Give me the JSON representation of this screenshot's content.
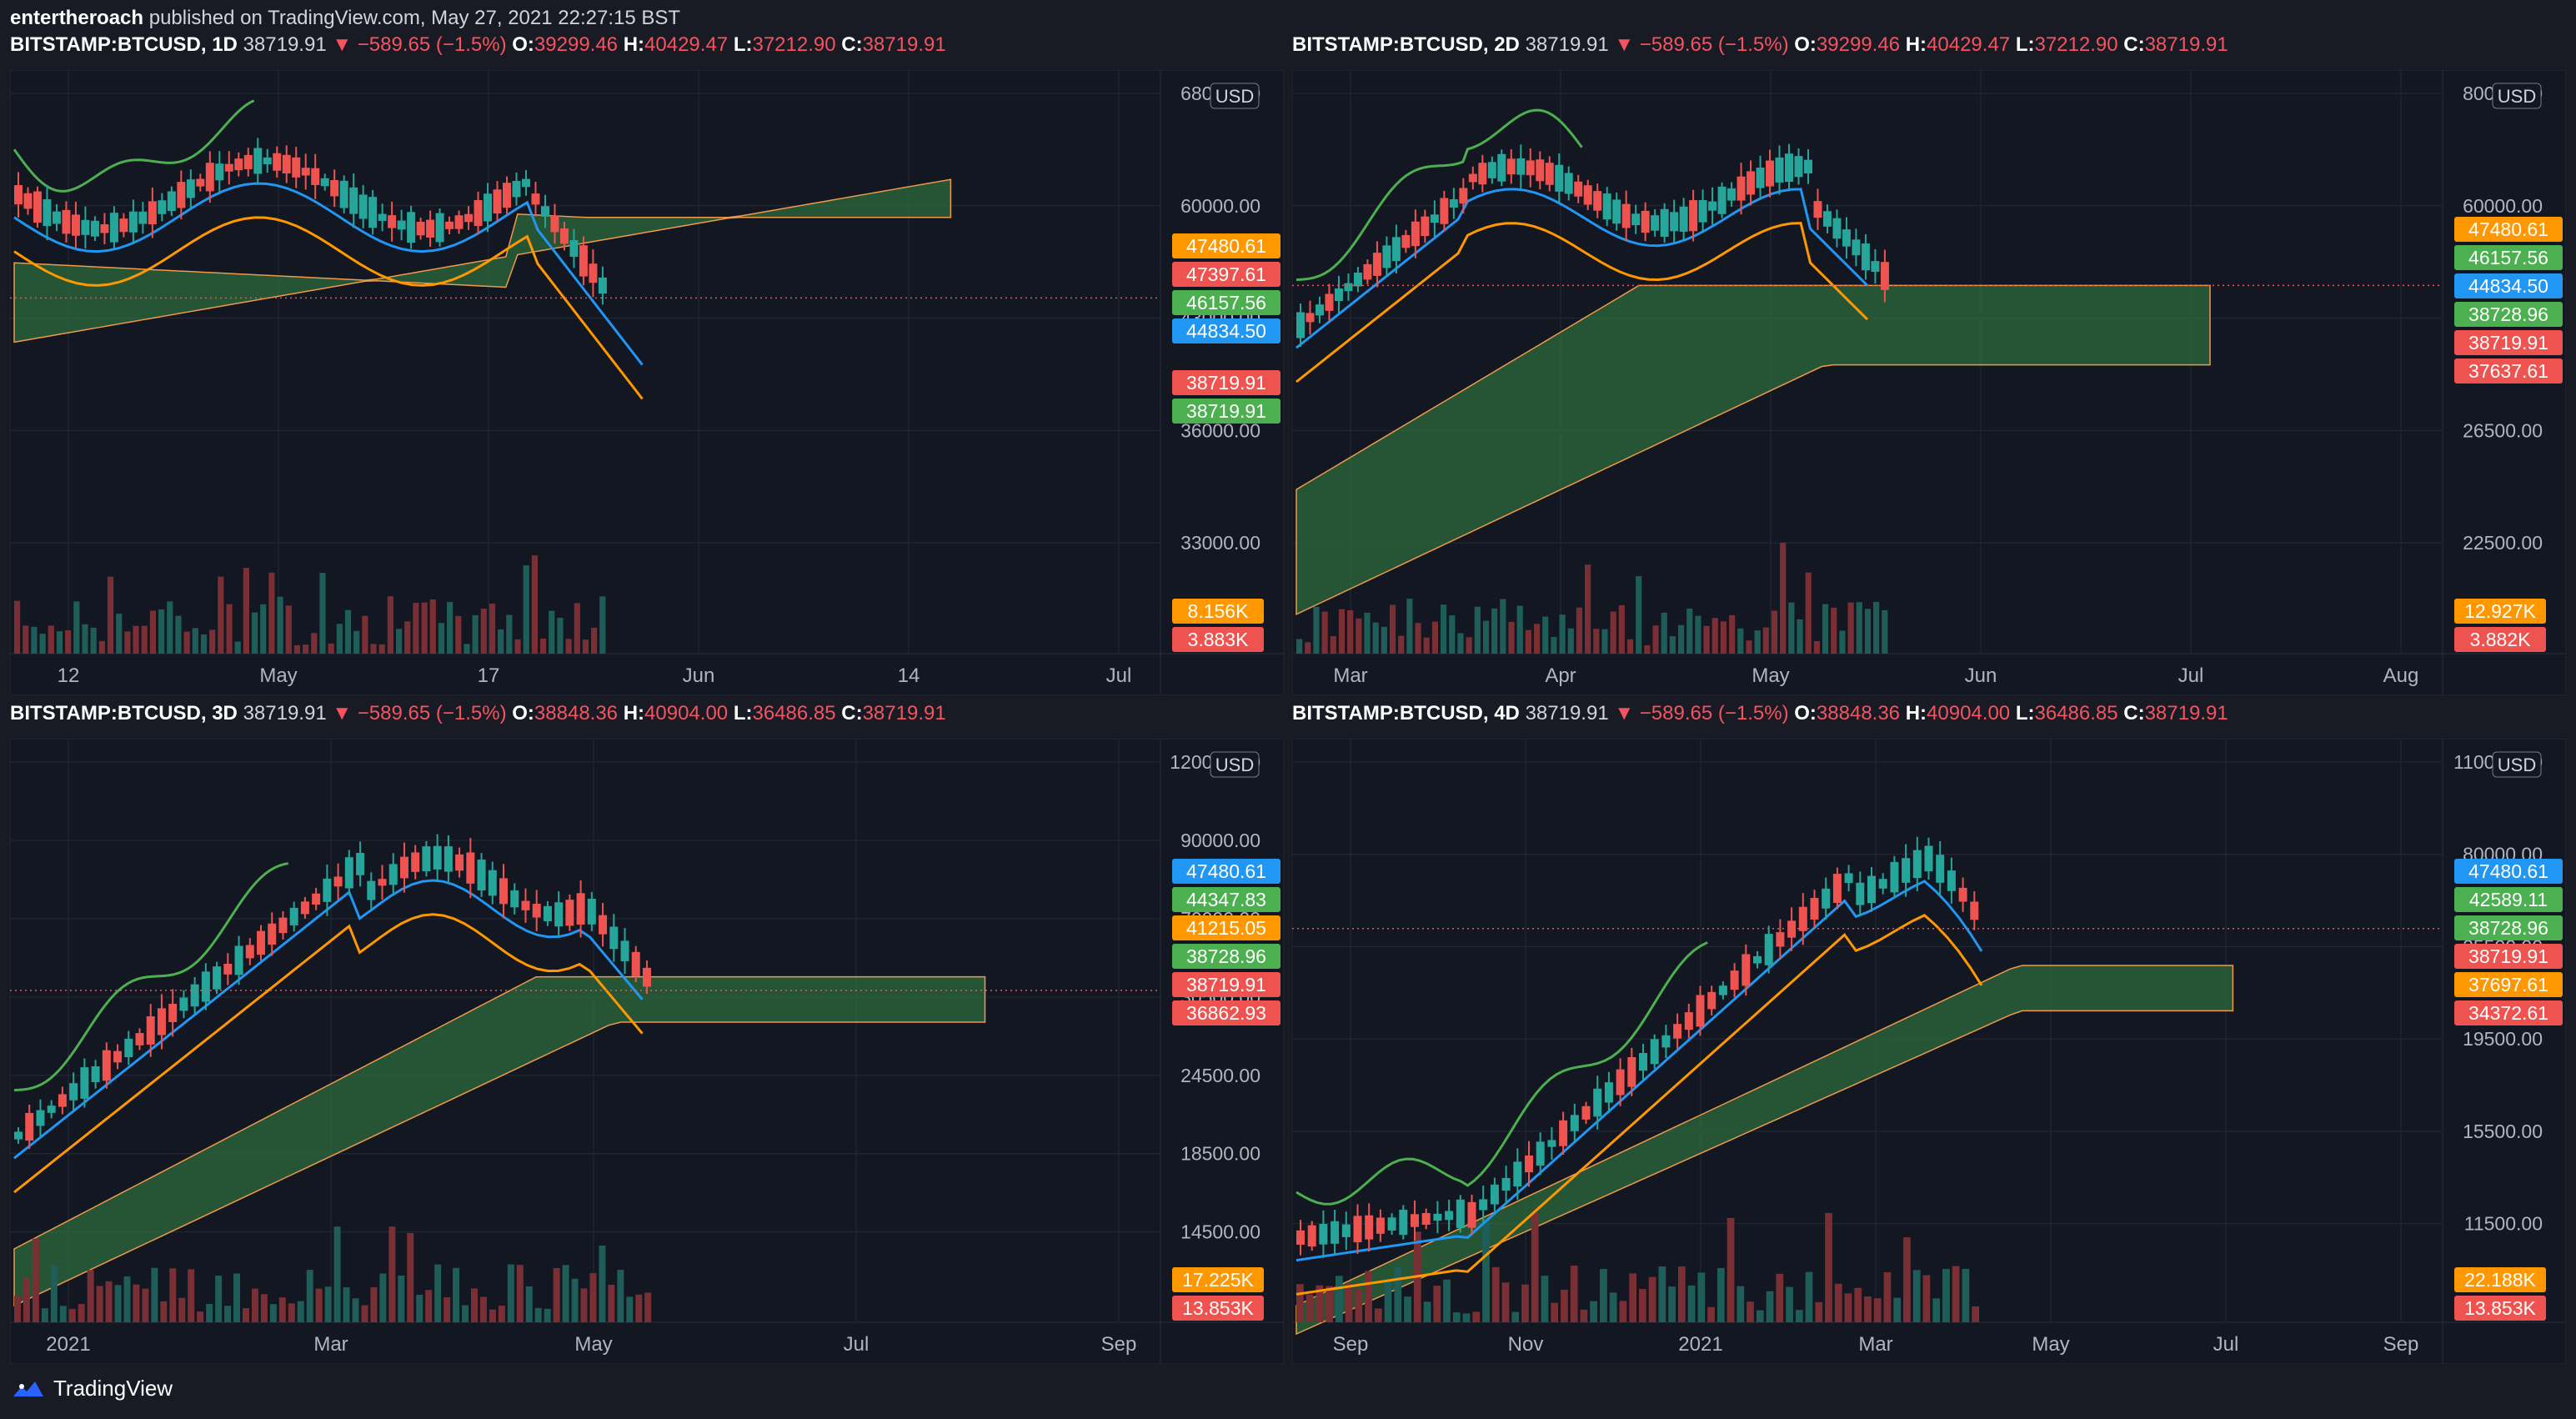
{
  "publisher": {
    "user": "entertheroach",
    "text": "published on TradingView.com, May 27, 2021 22:27:15 BST"
  },
  "brand": {
    "name": "TradingView",
    "icon": "tradingview-logo-icon"
  },
  "colors": {
    "bg": "#181b24",
    "panel": "#131722",
    "up": "#26a69a",
    "down": "#ef5350",
    "tenkan": "#2196f3",
    "kijun": "#ff9800",
    "chikou": "#4caf50",
    "cloud": "#2e6b3c",
    "grid": "#262a35"
  },
  "panels": [
    {
      "id": "1d",
      "header": {
        "symbol": "BITSTAMP:BTCUSD, 1D",
        "last": "38719.91",
        "change": "−589.65 (−1.5%)",
        "o": "39299.46",
        "h": "40429.47",
        "l": "37212.90",
        "c": "38719.91"
      },
      "currency": "USD",
      "x_ticks": [
        "12",
        "May",
        "17",
        "Jun",
        "14",
        "Jul"
      ],
      "y_ticks": [
        "68000.00",
        "60000.00",
        "43000.00",
        "36000.00",
        "33000.00"
      ],
      "price_labels": [
        {
          "text": "47480.61",
          "color": "#ff9800"
        },
        {
          "text": "47397.61",
          "color": "#ef5350"
        },
        {
          "text": "46157.56",
          "color": "#4caf50"
        },
        {
          "text": "44834.50",
          "color": "#2196f3"
        },
        {
          "text": "38719.91",
          "color": "#ef5350"
        },
        {
          "text": "38719.91",
          "color": "#4caf50"
        }
      ],
      "volume_labels": [
        {
          "text": "8.156K",
          "color": "#ff9800"
        },
        {
          "text": "3.883K",
          "color": "#ef5350"
        }
      ]
    },
    {
      "id": "2d",
      "header": {
        "symbol": "BITSTAMP:BTCUSD, 2D",
        "last": "38719.91",
        "change": "−589.65 (−1.5%)",
        "o": "39299.46",
        "h": "40429.47",
        "l": "37212.90",
        "c": "38719.91"
      },
      "currency": "USD",
      "x_ticks": [
        "Mar",
        "Apr",
        "May",
        "Jun",
        "Jul",
        "Aug"
      ],
      "y_ticks": [
        "80000.00",
        "60000.00",
        "30500.00",
        "26500.00",
        "22500.00"
      ],
      "price_labels": [
        {
          "text": "47480.61",
          "color": "#ff9800"
        },
        {
          "text": "46157.56",
          "color": "#4caf50"
        },
        {
          "text": "44834.50",
          "color": "#2196f3"
        },
        {
          "text": "38728.96",
          "color": "#4caf50"
        },
        {
          "text": "38719.91",
          "color": "#ef5350"
        },
        {
          "text": "37637.61",
          "color": "#ef5350"
        }
      ],
      "volume_labels": [
        {
          "text": "12.927K",
          "color": "#ff9800"
        },
        {
          "text": "3.882K",
          "color": "#ef5350"
        }
      ]
    },
    {
      "id": "3d",
      "header": {
        "symbol": "BITSTAMP:BTCUSD, 3D",
        "last": "38719.91",
        "change": "−589.65 (−1.5%)",
        "o": "38848.36",
        "h": "40904.00",
        "l": "36486.85",
        "c": "38719.91"
      },
      "currency": "USD",
      "x_ticks": [
        "2021",
        "Mar",
        "May",
        "Jul",
        "Sep"
      ],
      "y_ticks": [
        "120000.00",
        "90000.00",
        "70000.00",
        "30500.00",
        "24500.00",
        "18500.00",
        "14500.00"
      ],
      "price_labels": [
        {
          "text": "47480.61",
          "color": "#2196f3"
        },
        {
          "text": "44347.83",
          "color": "#4caf50"
        },
        {
          "text": "41215.05",
          "color": "#ff9800"
        },
        {
          "text": "38728.96",
          "color": "#4caf50"
        },
        {
          "text": "38719.91",
          "color": "#ef5350"
        },
        {
          "text": "36862.93",
          "color": "#ef5350"
        }
      ],
      "volume_labels": [
        {
          "text": "17.225K",
          "color": "#ff9800"
        },
        {
          "text": "13.853K",
          "color": "#ef5350"
        }
      ]
    },
    {
      "id": "4d",
      "header": {
        "symbol": "BITSTAMP:BTCUSD, 4D",
        "last": "38719.91",
        "change": "−589.65 (−1.5%)",
        "o": "38848.36",
        "h": "40904.00",
        "l": "36486.85",
        "c": "38719.91"
      },
      "currency": "USD",
      "x_ticks": [
        "Sep",
        "Nov",
        "2021",
        "Mar",
        "May",
        "Jul",
        "Sep"
      ],
      "y_ticks": [
        "110000.00",
        "80000.00",
        "25500.00",
        "19500.00",
        "15500.00",
        "11500.00"
      ],
      "price_labels": [
        {
          "text": "47480.61",
          "color": "#2196f3"
        },
        {
          "text": "42589.11",
          "color": "#4caf50"
        },
        {
          "text": "38728.96",
          "color": "#4caf50"
        },
        {
          "text": "38719.91",
          "color": "#ef5350"
        },
        {
          "text": "37697.61",
          "color": "#ff9800"
        },
        {
          "text": "34372.61",
          "color": "#ef5350"
        }
      ],
      "volume_labels": [
        {
          "text": "22.188K",
          "color": "#ff9800"
        },
        {
          "text": "13.853K",
          "color": "#ef5350"
        }
      ]
    }
  ],
  "chart_data": [
    {
      "type": "candlestick",
      "interval": "1D",
      "symbol": "BITSTAMP:BTCUSD",
      "last": 38719.91,
      "ohlc": {
        "o": 39299.46,
        "h": 40429.47,
        "l": 37212.9,
        "c": 38719.91
      },
      "indicators": [
        "ichimoku",
        "volume"
      ]
    },
    {
      "type": "candlestick",
      "interval": "2D",
      "symbol": "BITSTAMP:BTCUSD",
      "last": 38719.91,
      "ohlc": {
        "o": 39299.46,
        "h": 40429.47,
        "l": 37212.9,
        "c": 38719.91
      },
      "indicators": [
        "ichimoku",
        "volume"
      ]
    },
    {
      "type": "candlestick",
      "interval": "3D",
      "symbol": "BITSTAMP:BTCUSD",
      "last": 38719.91,
      "ohlc": {
        "o": 38848.36,
        "h": 40904.0,
        "l": 36486.85,
        "c": 38719.91
      },
      "indicators": [
        "ichimoku",
        "volume"
      ]
    },
    {
      "type": "candlestick",
      "interval": "4D",
      "symbol": "BITSTAMP:BTCUSD",
      "last": 38719.91,
      "ohlc": {
        "o": 38848.36,
        "h": 40904.0,
        "l": 36486.85,
        "c": 38719.91
      },
      "indicators": [
        "ichimoku",
        "volume"
      ]
    }
  ]
}
